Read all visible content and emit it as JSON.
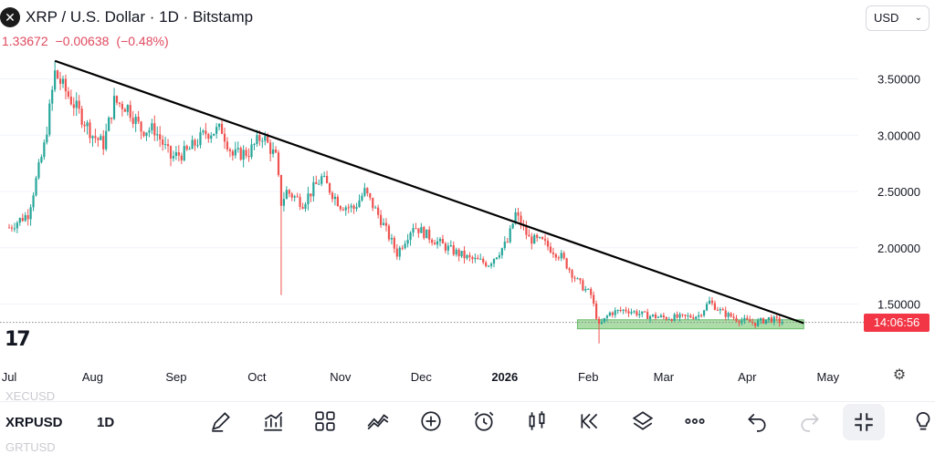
{
  "header": {
    "logo_glyph": "✕",
    "title": "XRP / U.S. Dollar · 1D · Bitstamp",
    "last_price": "1.33672",
    "change": "−0.00638",
    "change_pct": "(−0.48%)",
    "currency": "USD"
  },
  "price_label": "14:06:56",
  "tv_logo": "17",
  "toolbar": {
    "symbol": "XRPUSD",
    "interval": "1D",
    "ghost_above": "XECUSD",
    "ghost_below": "GRTUSD",
    "icons": [
      "draw-icon",
      "indicators-icon",
      "layout-grid-icon",
      "compare-icon",
      "add-icon",
      "alert-icon",
      "candle-style-icon",
      "replay-icon",
      "layers-icon",
      "more-icon",
      "undo-icon",
      "redo-icon",
      "collapse-icon",
      "ideas-icon"
    ]
  },
  "colors": {
    "up": "#26a69a",
    "down": "#ef5350",
    "support_fill": "#9ed89a",
    "support_stroke": "#4caf50",
    "trendline": "#000000",
    "price_tag": "#f23645"
  },
  "chart_data": {
    "type": "candlestick",
    "y_axis": {
      "ticks": [
        "3.50000",
        "3.00000",
        "2.50000",
        "2.00000",
        "1.50000"
      ],
      "range": [
        1.15,
        3.72
      ]
    },
    "x_axis": {
      "ticks": [
        "Jul",
        "Aug",
        "Sep",
        "Oct",
        "Nov",
        "Dec",
        "2026",
        "Feb",
        "Mar",
        "Apr",
        "May"
      ]
    },
    "current_price": 1.33672,
    "trendline": {
      "from": [
        "2025-07-18",
        3.66
      ],
      "to": [
        "2026-04-22",
        1.33
      ]
    },
    "support_zone": {
      "from": "2026-01-28",
      "to": "2026-04-22",
      "low": 1.28,
      "high": 1.36
    },
    "path": [
      [
        "2025-07-01",
        2.18
      ],
      [
        "2025-07-08",
        2.3
      ],
      [
        "2025-07-14",
        2.9
      ],
      [
        "2025-07-18",
        3.55
      ],
      [
        "2025-07-23",
        3.35
      ],
      [
        "2025-07-27",
        3.2
      ],
      [
        "2025-08-01",
        3.0
      ],
      [
        "2025-08-05",
        2.92
      ],
      [
        "2025-08-09",
        3.3
      ],
      [
        "2025-08-14",
        3.25
      ],
      [
        "2025-08-19",
        3.05
      ],
      [
        "2025-08-24",
        3.05
      ],
      [
        "2025-08-30",
        2.8
      ],
      [
        "2025-09-05",
        2.85
      ],
      [
        "2025-09-12",
        3.02
      ],
      [
        "2025-09-18",
        3.05
      ],
      [
        "2025-09-22",
        2.82
      ],
      [
        "2025-09-28",
        2.85
      ],
      [
        "2025-10-03",
        3.0
      ],
      [
        "2025-10-08",
        2.8
      ],
      [
        "2025-10-10",
        2.4
      ],
      [
        "2025-10-12",
        2.5
      ],
      [
        "2025-10-18",
        2.4
      ],
      [
        "2025-10-25",
        2.62
      ],
      [
        "2025-11-01",
        2.38
      ],
      [
        "2025-11-06",
        2.35
      ],
      [
        "2025-11-10",
        2.5
      ],
      [
        "2025-11-16",
        2.25
      ],
      [
        "2025-11-22",
        1.95
      ],
      [
        "2025-11-28",
        2.2
      ],
      [
        "2025-12-05",
        2.08
      ],
      [
        "2025-12-12",
        1.98
      ],
      [
        "2025-12-19",
        1.9
      ],
      [
        "2025-12-26",
        1.86
      ],
      [
        "2026-01-02",
        2.05
      ],
      [
        "2026-01-05",
        2.3
      ],
      [
        "2026-01-10",
        2.08
      ],
      [
        "2026-01-15",
        2.05
      ],
      [
        "2026-01-22",
        1.92
      ],
      [
        "2026-01-28",
        1.7
      ],
      [
        "2026-02-02",
        1.58
      ],
      [
        "2026-02-05",
        1.3
      ],
      [
        "2026-02-09",
        1.42
      ],
      [
        "2026-02-15",
        1.45
      ],
      [
        "2026-02-22",
        1.4
      ],
      [
        "2026-03-01",
        1.38
      ],
      [
        "2026-03-08",
        1.38
      ],
      [
        "2026-03-14",
        1.4
      ],
      [
        "2026-03-18",
        1.52
      ],
      [
        "2026-03-23",
        1.42
      ],
      [
        "2026-03-29",
        1.36
      ],
      [
        "2026-04-04",
        1.33
      ],
      [
        "2026-04-09",
        1.37
      ],
      [
        "2026-04-14",
        1.34
      ]
    ],
    "wicks": {
      "2025-10-10": 1.58,
      "2026-02-05": 1.15,
      "2025-07-18": 3.66
    }
  }
}
